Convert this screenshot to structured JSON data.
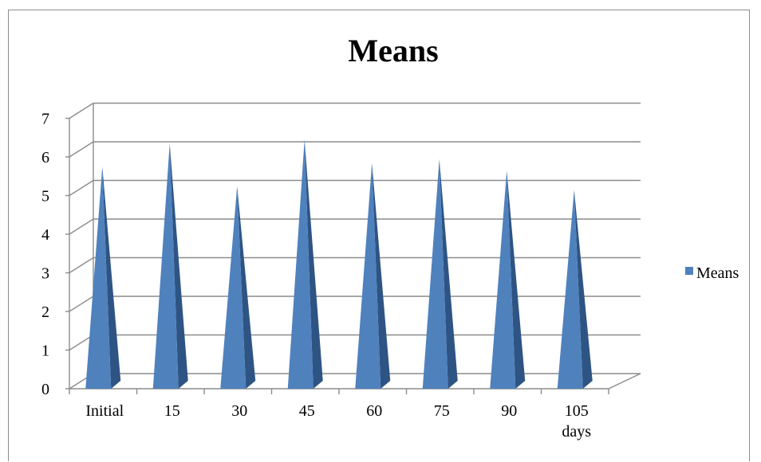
{
  "chart_data": {
    "type": "bar",
    "style": "3d-cone",
    "title": "Means",
    "categories": [
      "Initial",
      "15",
      "30",
      "45",
      "60",
      "75",
      "90",
      "105 days"
    ],
    "series": [
      {
        "name": "Means",
        "values": [
          5.5,
          6.1,
          5.0,
          6.2,
          5.6,
          5.7,
          5.4,
          4.9
        ]
      }
    ],
    "ylim": [
      0,
      7
    ],
    "yticks": [
      0,
      1,
      2,
      3,
      4,
      5,
      6,
      7
    ],
    "grid": true,
    "legend_position": "right",
    "colors": {
      "series": "#4F81BD",
      "series_dark": "#2E5484",
      "grid": "#8c8c8c"
    }
  }
}
